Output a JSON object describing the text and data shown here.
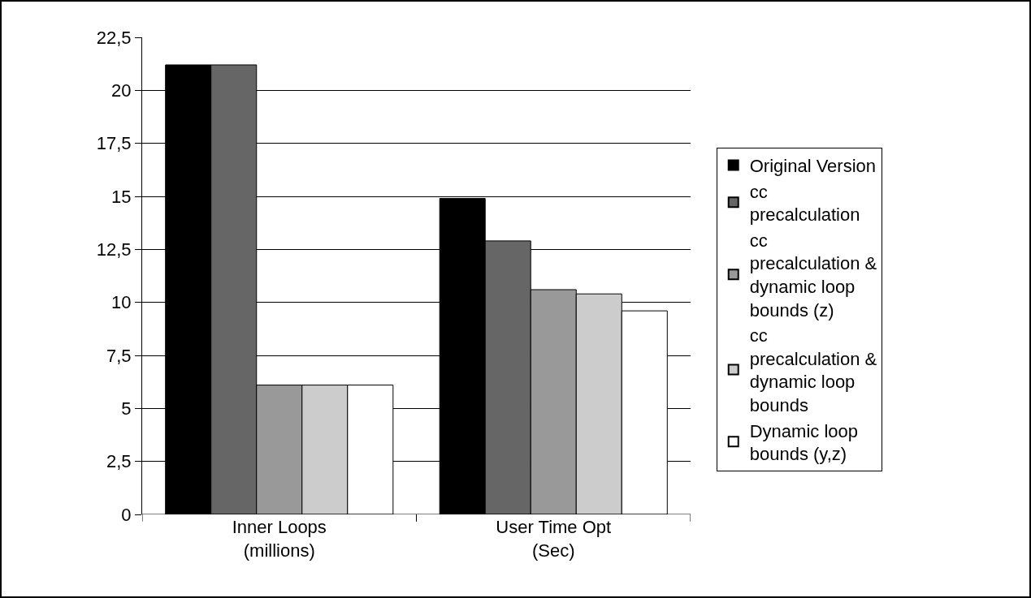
{
  "chart_data": {
    "type": "bar",
    "categories": [
      "Inner Loops (millions)",
      "User Time Opt (Sec)"
    ],
    "series": [
      {
        "name": "Original Version",
        "color": "#000000",
        "values": [
          21.2,
          14.9
        ]
      },
      {
        "name": "cc precalculation",
        "color": "#666666",
        "values": [
          21.2,
          12.9
        ]
      },
      {
        "name": "cc precalculation & dynamic loop bounds (z)",
        "color": "#999999",
        "values": [
          6.1,
          10.6
        ]
      },
      {
        "name": "cc precalculation & dynamic loop bounds",
        "color": "#cccccc",
        "values": [
          6.1,
          10.4
        ]
      },
      {
        "name": "Dynamic loop bounds (y,z)",
        "color": "#ffffff",
        "values": [
          6.1,
          9.6
        ]
      }
    ],
    "ylim": [
      0,
      22.5
    ],
    "yticks": [
      0,
      {
        "value": 2.5,
        "label": "2,5"
      },
      5,
      {
        "value": 7.5,
        "label": "7,5"
      },
      10,
      {
        "value": 12.5,
        "label": "12,5"
      },
      15,
      {
        "value": 17.5,
        "label": "17,5"
      },
      20,
      {
        "value": 22.5,
        "label": "22,5"
      }
    ],
    "grid": "y",
    "legend": "right"
  }
}
